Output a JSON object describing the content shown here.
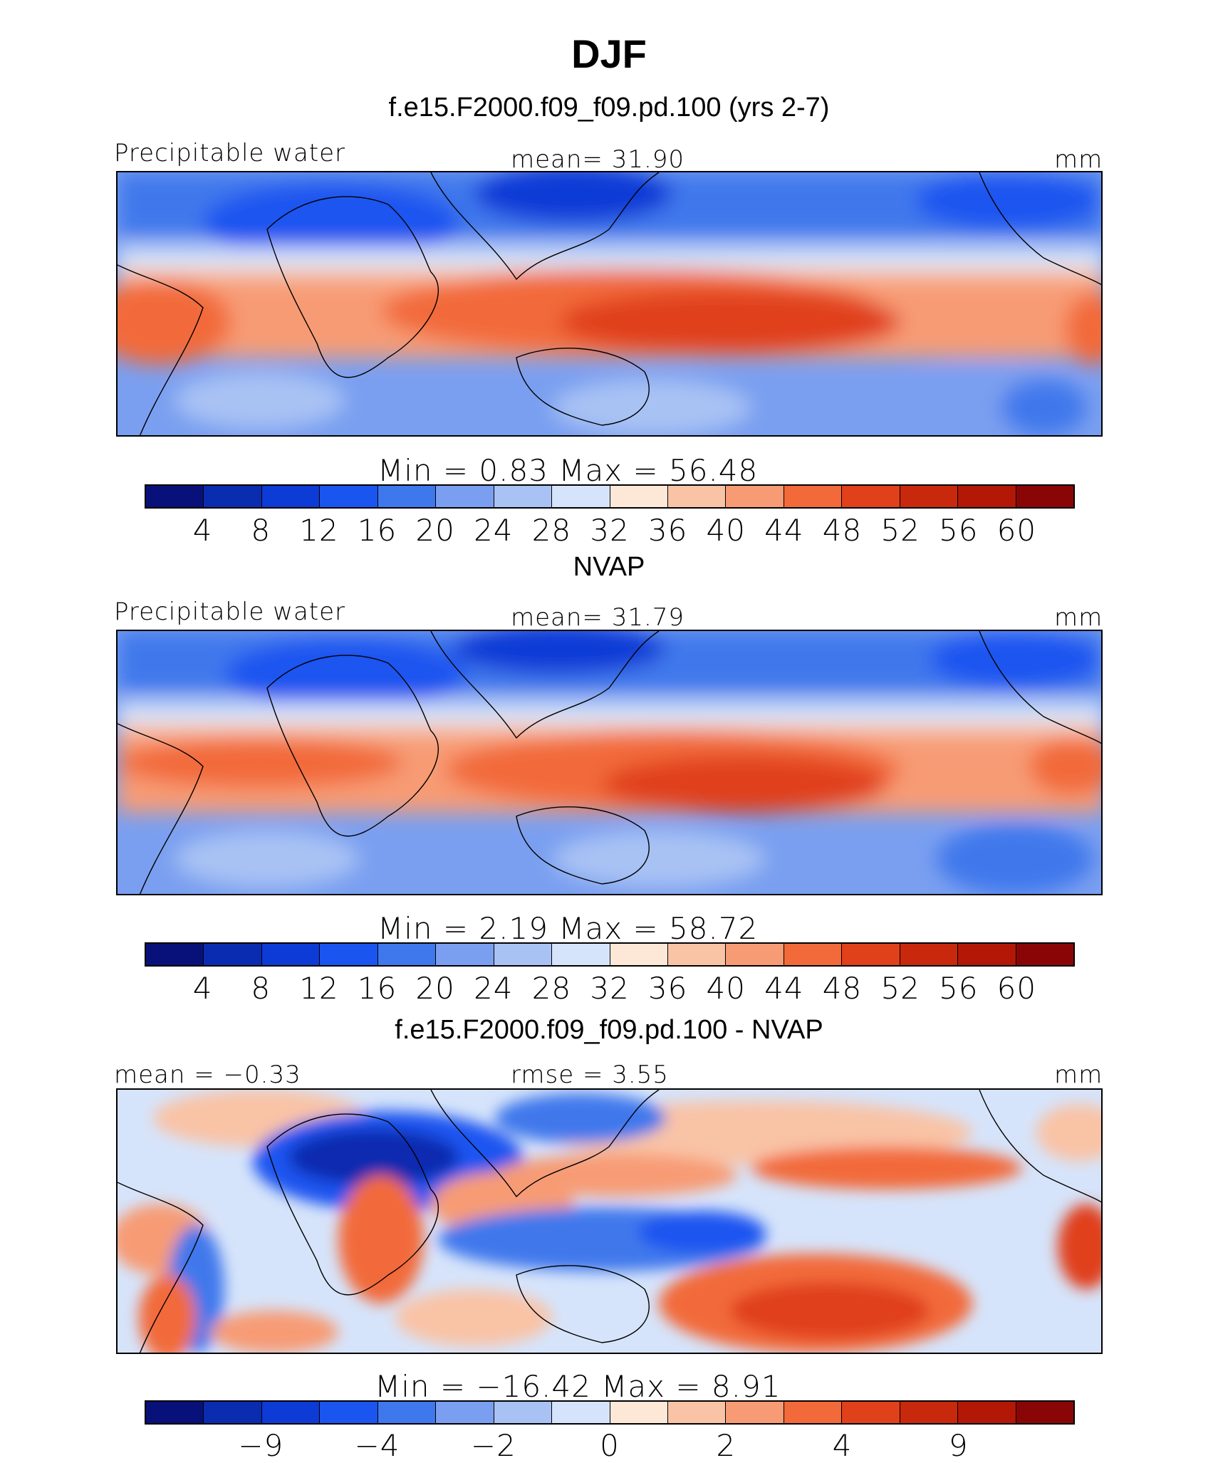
{
  "title": "DJF",
  "colors": {
    "absolute_scale": [
      "#08107a",
      "#0a2cb0",
      "#0c3bd6",
      "#1a55f0",
      "#3f78ec",
      "#7a9ff0",
      "#a9c2f4",
      "#d6e4fb",
      "#fde8d8",
      "#f9c3a6",
      "#f79b74",
      "#f26a3a",
      "#e0401a",
      "#c8280c",
      "#b31806",
      "#8a0606"
    ],
    "difference_scale": [
      "#08107a",
      "#0a2cb0",
      "#0c3bd6",
      "#1a55f0",
      "#3f78ec",
      "#7a9ff0",
      "#a9c2f4",
      "#d6e4fb",
      "#fde8d8",
      "#f9c3a6",
      "#f79b74",
      "#f26a3a",
      "#e0401a",
      "#c8280c",
      "#b31806",
      "#8a0606"
    ]
  },
  "panels": [
    {
      "title": "f.e15.F2000.f09_f09.pd.100 (yrs 2-7)",
      "left_label": "Precipitable water",
      "center_label": "mean=   31.90",
      "right_label": "mm",
      "stats": "Min  =     0.83  Max  =    56.48",
      "tick_labels": [
        "4",
        "8",
        "12",
        "16",
        "20",
        "24",
        "28",
        "32",
        "36",
        "40",
        "44",
        "48",
        "52",
        "56",
        "60"
      ]
    },
    {
      "title": "NVAP",
      "left_label": "Precipitable water",
      "center_label": "mean=   31.79",
      "right_label": "mm",
      "stats": "Min  =     2.19  Max  =    58.72",
      "tick_labels": [
        "4",
        "8",
        "12",
        "16",
        "20",
        "24",
        "28",
        "32",
        "36",
        "40",
        "44",
        "48",
        "52",
        "56",
        "60"
      ]
    },
    {
      "title": "f.e15.F2000.f09_f09.pd.100 - NVAP",
      "left_label": "mean =   −0.33",
      "center_label": "rmse =     3.55",
      "right_label": "mm",
      "stats": "Min  =  −16.42  Max  =       8.91",
      "tick_labels": [
        "−9",
        "−4",
        "−2",
        "0",
        "2",
        "4",
        "9"
      ]
    }
  ],
  "chart_data": [
    {
      "type": "heatmap",
      "title": "f.e15.F2000.f09_f09.pd.100 (yrs 2-7)",
      "variable": "Precipitable water",
      "units": "mm",
      "mean": 31.9,
      "min": 0.83,
      "max": 56.48,
      "contour_levels": [
        4,
        8,
        12,
        16,
        20,
        24,
        28,
        32,
        36,
        40,
        44,
        48,
        52,
        56,
        60
      ],
      "xrange": "global longitude",
      "yrange": "tropics"
    },
    {
      "type": "heatmap",
      "title": "NVAP",
      "variable": "Precipitable water",
      "units": "mm",
      "mean": 31.79,
      "min": 2.19,
      "max": 58.72,
      "contour_levels": [
        4,
        8,
        12,
        16,
        20,
        24,
        28,
        32,
        36,
        40,
        44,
        48,
        52,
        56,
        60
      ]
    },
    {
      "type": "heatmap",
      "title": "f.e15.F2000.f09_f09.pd.100 - NVAP",
      "units": "mm",
      "mean": -0.33,
      "rmse": 3.55,
      "min": -16.42,
      "max": 8.91,
      "labeled_levels": [
        -9,
        -4,
        -2,
        0,
        2,
        4,
        9
      ]
    }
  ]
}
